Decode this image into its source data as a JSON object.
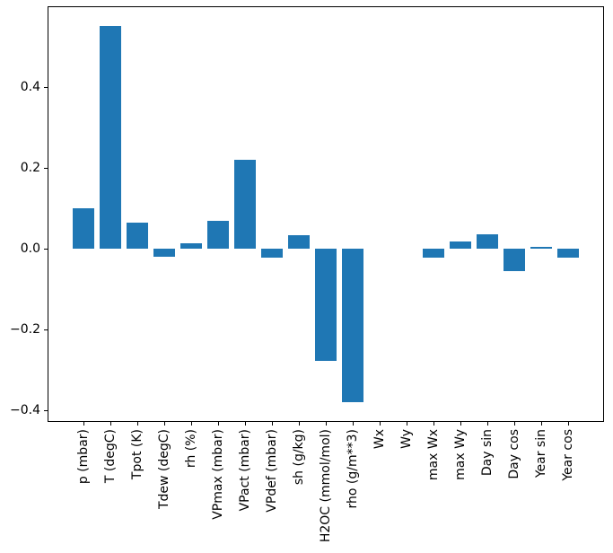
{
  "figure": {
    "background": "#ffffff",
    "spine_color": "#000000",
    "tick_color": "#000000"
  },
  "chart_data": {
    "type": "bar",
    "title": "",
    "xlabel": "",
    "ylabel": "",
    "categories": [
      "p (mbar)",
      "T (degC)",
      "Tpot (K)",
      "Tdew (degC)",
      "rh (%)",
      "VPmax (mbar)",
      "VPact (mbar)",
      "VPdef (mbar)",
      "sh (g/kg)",
      "H2OC (mmol/mol)",
      "rho (g/m**3)",
      "Wx",
      "Wy",
      "max Wx",
      "max Wy",
      "Day sin",
      "Day cos",
      "Year sin",
      "Year cos"
    ],
    "values": [
      0.1,
      0.55,
      0.063,
      -0.02,
      0.012,
      0.068,
      0.22,
      -0.023,
      0.032,
      -0.278,
      -0.382,
      0.0,
      0.0,
      -0.022,
      0.017,
      0.036,
      -0.057,
      0.003,
      -0.023
    ],
    "bar_color": "#1f77b4",
    "ylim": [
      -0.43,
      0.6
    ],
    "yticks": [
      {
        "value": 0.4,
        "label": "0.4"
      },
      {
        "value": 0.2,
        "label": "0.2"
      },
      {
        "value": 0.0,
        "label": "0.0"
      },
      {
        "value": -0.2,
        "label": "−0.2"
      },
      {
        "value": -0.4,
        "label": "−0.4"
      }
    ],
    "grid": false,
    "legend": null,
    "x_tick_rotation_deg": 90
  }
}
